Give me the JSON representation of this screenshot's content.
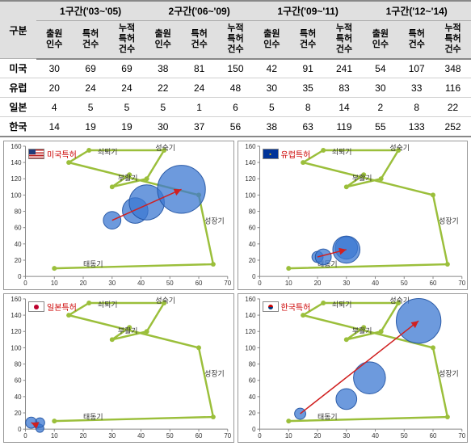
{
  "table": {
    "header_groups": [
      "구분",
      "1구간('03~'05)",
      "2구간('06~'09)",
      "1구간('09~'11)",
      "1구간('12~'14)"
    ],
    "sub_headers": [
      "출원\n인수",
      "특허\n건수",
      "누적\n특허\n건수"
    ],
    "rows": [
      {
        "label": "미국",
        "vals": [
          30,
          69,
          69,
          38,
          81,
          150,
          42,
          91,
          241,
          54,
          107,
          348
        ]
      },
      {
        "label": "유럽",
        "vals": [
          20,
          24,
          24,
          22,
          24,
          48,
          30,
          35,
          83,
          30,
          33,
          116
        ]
      },
      {
        "label": "일본",
        "vals": [
          4,
          5,
          5,
          5,
          1,
          6,
          5,
          8,
          14,
          2,
          8,
          22
        ]
      },
      {
        "label": "한국",
        "vals": [
          14,
          19,
          19,
          30,
          37,
          56,
          38,
          63,
          119,
          55,
          133,
          252
        ]
      }
    ],
    "header_bg": "#e0e0e0",
    "border": "#d0d0d0"
  },
  "chart_common": {
    "x_ticks": [
      0,
      10,
      20,
      30,
      40,
      50,
      60,
      70
    ],
    "y_ticks": [
      0,
      20,
      40,
      60,
      80,
      100,
      120,
      140,
      160
    ],
    "stages": [
      "태동기",
      "성장기",
      "성숙기",
      "쇠퇴기",
      "부활기"
    ],
    "spiral_points": [
      [
        10,
        10
      ],
      [
        65,
        15
      ],
      [
        60,
        100
      ],
      [
        15,
        140
      ],
      [
        22,
        155
      ],
      [
        48,
        155
      ],
      [
        42,
        120
      ],
      [
        30,
        110
      ],
      [
        36,
        125
      ]
    ],
    "spiral_color": "#9bbf3b",
    "trend_color": "#d02020",
    "bubble_fill": "rgba(60,120,210,0.75)",
    "bubble_stroke": "#2a5aa0",
    "bg": "#ffffff"
  },
  "charts": [
    {
      "name": "미국특허",
      "flag_css": "linear-gradient(to bottom,#b22 0 15%,#fff 15% 30%,#b22 30% 45%,#fff 45% 60%,#b22 60% 75%,#fff 75% 90%,#b22 90%)",
      "flag_overlay": "#223a7a",
      "bubbles": [
        [
          30,
          69,
          11
        ],
        [
          38,
          81,
          16
        ],
        [
          42,
          91,
          22
        ],
        [
          54,
          107,
          30
        ]
      ],
      "trend": [
        [
          30,
          69
        ],
        [
          54,
          107
        ]
      ]
    },
    {
      "name": "유럽특허",
      "flag_css": "linear-gradient(#003399,#003399)",
      "flag_stars": true,
      "bubbles": [
        [
          20,
          24,
          7
        ],
        [
          22,
          24,
          10
        ],
        [
          30,
          35,
          14
        ],
        [
          30,
          33,
          17
        ]
      ],
      "trend": [
        [
          20,
          24
        ],
        [
          30,
          33
        ]
      ]
    },
    {
      "name": "일본특허",
      "flag_css": "linear-gradient(#fff,#fff)",
      "flag_circle": "#bc002d",
      "bubbles": [
        [
          4,
          5,
          4
        ],
        [
          5,
          1,
          5
        ],
        [
          5,
          8,
          6
        ],
        [
          2,
          8,
          7
        ]
      ],
      "trend": [
        [
          4,
          5
        ],
        [
          2,
          8
        ]
      ]
    },
    {
      "name": "한국특허",
      "flag_css": "linear-gradient(#fff,#fff)",
      "flag_kr": true,
      "bubbles": [
        [
          14,
          19,
          7
        ],
        [
          30,
          37,
          13
        ],
        [
          38,
          63,
          20
        ],
        [
          55,
          133,
          28
        ]
      ],
      "trend": [
        [
          14,
          19
        ],
        [
          55,
          133
        ]
      ]
    }
  ]
}
